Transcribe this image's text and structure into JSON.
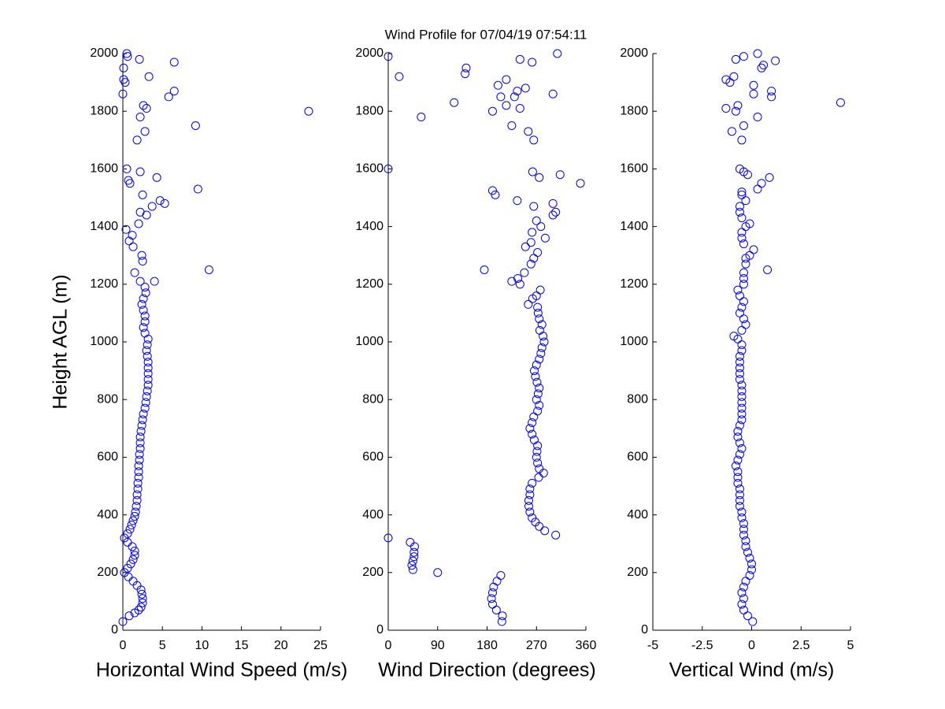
{
  "title": "Wind Profile for  07/04/19 07:54:11",
  "chart_data": [
    {
      "type": "scatter",
      "x_label": "Horizontal Wind Speed (m/s)",
      "y_label": "Height AGL (m)",
      "color": "#0000ff",
      "xlim": [
        0,
        25
      ],
      "xticks": [
        0,
        5,
        10,
        15,
        20,
        25
      ],
      "ylim": [
        0,
        2000
      ],
      "yticks": [
        0,
        200,
        400,
        600,
        800,
        1000,
        1200,
        1400,
        1600,
        1800,
        2000
      ],
      "x": [
        0,
        0.8,
        1.5,
        2,
        2.3,
        2.5,
        2.5,
        2.4,
        2.3,
        1.8,
        1.3,
        0.7,
        0.2,
        0.6,
        1.0,
        1.3,
        1.5,
        1.5,
        1.2,
        0.6,
        0.2,
        0.6,
        0.9,
        1.1,
        1.3,
        1.5,
        1.6,
        1.7,
        1.8,
        1.8,
        1.9,
        1.9,
        2.0,
        2.0,
        2.0,
        2.1,
        2.1,
        2.2,
        2.2,
        2.2,
        2.3,
        2.4,
        2.5,
        2.6,
        2.8,
        2.9,
        3.0,
        3.1,
        3.2,
        3.2,
        3.2,
        3.2,
        3.2,
        3.1,
        3.0,
        3.1,
        3.2,
        2.8,
        2.6,
        2.8,
        2.8,
        2.6,
        2.4,
        2.6,
        2.9,
        2.8,
        2.2,
        1.5,
        2.5,
        2.4,
        1.3,
        0.8,
        1.2,
        0.4,
        2.0,
        3.0,
        2.2,
        3.7,
        5.3,
        4.7,
        2.5,
        9.5,
        4.3,
        0.7,
        2.2,
        0.5,
        1.8,
        2.8,
        9.2,
        2.2,
        23.5,
        3.0,
        2.6,
        5.8,
        0.0,
        6.5,
        0.3,
        3.3,
        0.1,
        6.5,
        2.1,
        0.5,
        4.0,
        10.9,
        0.1,
        0.6,
        0.9
      ],
      "values": [
        30,
        50,
        60,
        70,
        80,
        95,
        110,
        125,
        140,
        155,
        170,
        185,
        200,
        215,
        230,
        245,
        260,
        275,
        290,
        305,
        320,
        335,
        350,
        365,
        380,
        395,
        410,
        430,
        450,
        470,
        490,
        510,
        530,
        550,
        570,
        590,
        610,
        630,
        650,
        670,
        690,
        710,
        730,
        750,
        770,
        790,
        810,
        830,
        850,
        870,
        890,
        910,
        930,
        950,
        970,
        990,
        1010,
        1030,
        1050,
        1070,
        1090,
        1110,
        1130,
        1150,
        1170,
        1190,
        1210,
        1240,
        1280,
        1300,
        1330,
        1350,
        1370,
        1390,
        1410,
        1440,
        1450,
        1470,
        1480,
        1490,
        1510,
        1530,
        1570,
        1560,
        1590,
        1600,
        1700,
        1730,
        1750,
        1780,
        1800,
        1810,
        1820,
        1850,
        1860,
        1870,
        1900,
        1920,
        1950,
        1970,
        1980,
        2000,
        1210,
        1250,
        1910,
        1990,
        1550
      ]
    },
    {
      "type": "scatter",
      "x_label": "Wind Direction (degrees)",
      "color": "#0000ff",
      "xlim": [
        0,
        360
      ],
      "xticks": [
        0,
        90,
        180,
        270,
        360
      ],
      "ylim": [
        0,
        2000
      ],
      "yticks": [
        0,
        200,
        400,
        600,
        800,
        1000,
        1200,
        1400,
        1600,
        1800,
        2000
      ],
      "x": [
        207,
        208,
        197,
        190,
        188,
        190,
        192,
        198,
        205,
        90,
        45,
        43,
        45,
        47,
        47,
        48,
        40,
        0,
        305,
        285,
        275,
        268,
        262,
        258,
        256,
        256,
        258,
        258,
        262,
        274,
        283,
        275,
        272,
        270,
        271,
        272,
        266,
        262,
        258,
        262,
        265,
        272,
        275,
        270,
        273,
        275,
        271,
        268,
        266,
        270,
        275,
        278,
        280,
        284,
        282,
        276,
        280,
        275,
        273,
        272,
        255,
        263,
        270,
        277,
        240,
        225,
        236,
        248,
        260,
        265,
        272,
        250,
        260,
        286,
        262,
        278,
        270,
        300,
        305,
        265,
        300,
        235,
        195,
        190,
        350,
        275,
        263,
        313,
        0,
        175,
        225,
        265,
        255,
        60,
        190,
        120,
        240,
        215,
        300,
        235,
        250,
        200,
        215,
        20,
        140,
        142,
        240,
        262,
        0,
        308,
        230,
        205
      ],
      "values": [
        30,
        50,
        70,
        90,
        110,
        130,
        150,
        170,
        190,
        200,
        210,
        225,
        240,
        255,
        270,
        290,
        305,
        320,
        330,
        345,
        360,
        375,
        390,
        410,
        430,
        450,
        470,
        490,
        510,
        530,
        545,
        560,
        580,
        600,
        620,
        640,
        660,
        680,
        700,
        720,
        740,
        760,
        780,
        800,
        820,
        840,
        860,
        880,
        900,
        920,
        940,
        960,
        980,
        1000,
        1020,
        1040,
        1060,
        1080,
        1100,
        1120,
        1130,
        1150,
        1160,
        1180,
        1200,
        1210,
        1220,
        1240,
        1270,
        1290,
        1310,
        1330,
        1345,
        1360,
        1380,
        1400,
        1420,
        1440,
        1450,
        1470,
        1480,
        1490,
        1510,
        1525,
        1550,
        1570,
        1590,
        1580,
        1600,
        1250,
        1750,
        1700,
        1730,
        1780,
        1800,
        1830,
        1810,
        1820,
        1860,
        1870,
        1880,
        1890,
        1910,
        1920,
        1930,
        1950,
        1980,
        1970,
        1990,
        2000,
        1850,
        1850
      ]
    },
    {
      "type": "scatter",
      "x_label": "Vertical Wind (m/s)",
      "color": "#0000ff",
      "xlim": [
        -5,
        5
      ],
      "xticks": [
        -5,
        -2.5,
        0,
        2.5,
        5
      ],
      "ylim": [
        0,
        2000
      ],
      "yticks": [
        0,
        200,
        400,
        600,
        800,
        1000,
        1200,
        1400,
        1600,
        1800,
        2000
      ],
      "x": [
        0.05,
        -0.2,
        -0.4,
        -0.5,
        -0.4,
        -0.5,
        -0.4,
        -0.3,
        -0.1,
        0.0,
        0.0,
        -0.1,
        -0.2,
        -0.3,
        -0.3,
        -0.4,
        -0.4,
        -0.4,
        -0.5,
        -0.5,
        -0.6,
        -0.6,
        -0.6,
        -0.6,
        -0.7,
        -0.7,
        -0.7,
        -0.8,
        -0.7,
        -0.6,
        -0.5,
        -0.6,
        -0.7,
        -0.7,
        -0.6,
        -0.5,
        -0.5,
        -0.5,
        -0.5,
        -0.5,
        -0.5,
        -0.5,
        -0.6,
        -0.6,
        -0.6,
        -0.6,
        -0.6,
        -0.5,
        -0.5,
        -0.7,
        -0.9,
        -0.5,
        -0.3,
        -0.4,
        -0.6,
        -0.5,
        -0.4,
        -0.6,
        -0.7,
        -0.4,
        -0.4,
        -0.4,
        -0.3,
        0.8,
        -0.3,
        -0.1,
        0.1,
        -0.4,
        -0.5,
        -0.5,
        -0.3,
        -0.1,
        -0.5,
        -0.6,
        -0.6,
        -0.3,
        -0.5,
        -0.5,
        0.3,
        0.5,
        0.9,
        -0.2,
        -0.4,
        -0.6,
        -0.5,
        -1.0,
        -0.4,
        0.3,
        -0.8,
        -1.3,
        -0.7,
        4.5,
        1.0,
        0.1,
        1.0,
        0.1,
        -1.1,
        -1.3,
        -0.9,
        0.5,
        0.6,
        1.2,
        -0.8,
        -0.4,
        0.3
      ],
      "values": [
        30,
        50,
        70,
        90,
        110,
        130,
        150,
        170,
        190,
        210,
        230,
        250,
        270,
        290,
        310,
        330,
        350,
        370,
        390,
        410,
        430,
        450,
        470,
        490,
        510,
        530,
        550,
        570,
        590,
        610,
        630,
        650,
        670,
        690,
        710,
        730,
        750,
        770,
        790,
        810,
        830,
        850,
        870,
        890,
        910,
        930,
        950,
        970,
        990,
        1010,
        1020,
        1040,
        1060,
        1080,
        1100,
        1120,
        1140,
        1160,
        1180,
        1200,
        1220,
        1240,
        1270,
        1250,
        1290,
        1300,
        1320,
        1340,
        1360,
        1380,
        1400,
        1410,
        1430,
        1450,
        1470,
        1490,
        1510,
        1520,
        1530,
        1550,
        1570,
        1580,
        1590,
        1600,
        1700,
        1730,
        1750,
        1780,
        1800,
        1810,
        1820,
        1830,
        1850,
        1860,
        1870,
        1890,
        1900,
        1910,
        1920,
        1950,
        1960,
        1975,
        1980,
        1990,
        2000
      ]
    }
  ]
}
